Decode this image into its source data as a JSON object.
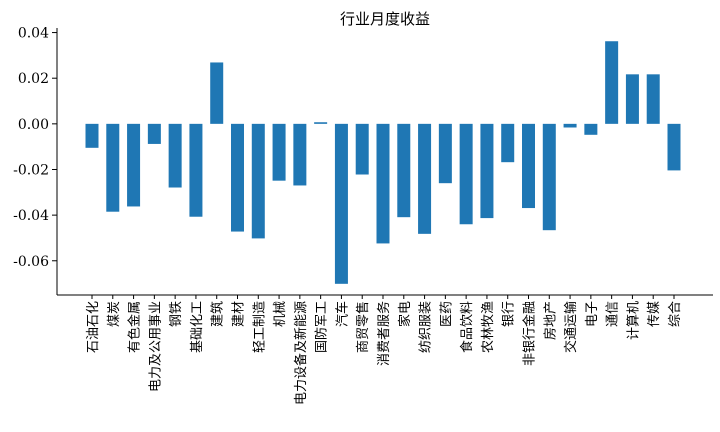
{
  "chart_data": {
    "type": "bar",
    "title": "行业月度收益",
    "xlabel": "",
    "ylabel": "",
    "ylim": [
      -0.075,
      0.042
    ],
    "yticks": [
      0.04,
      0.02,
      0.0,
      -0.02,
      -0.04,
      -0.06
    ],
    "ytick_labels": [
      "0.04",
      "0.02",
      "0.00",
      "-0.02",
      "-0.04",
      "-0.06"
    ],
    "grid": false,
    "bar_color": "#1f77b4",
    "categories": [
      "石油石化",
      "煤炭",
      "有色金属",
      "电力及公用事业",
      "钢铁",
      "基础化工",
      "建筑",
      "建材",
      "轻工制造",
      "机械",
      "电力设备及新能源",
      "国防军工",
      "汽车",
      "商贸零售",
      "消费者服务",
      "家电",
      "纺织服装",
      "医药",
      "食品饮料",
      "农林牧渔",
      "银行",
      "非银行金融",
      "房地产",
      "交通运输",
      "电子",
      "通信",
      "计算机",
      "传媒",
      "综合"
    ],
    "values": [
      -0.0105,
      -0.0385,
      -0.0362,
      -0.0088,
      -0.0279,
      -0.0407,
      0.0269,
      -0.0472,
      -0.0502,
      -0.0249,
      -0.027,
      0.0007,
      -0.0701,
      -0.0222,
      -0.0524,
      -0.0409,
      -0.0482,
      -0.026,
      -0.044,
      -0.0413,
      -0.0168,
      -0.0369,
      -0.0466,
      -0.0016,
      -0.0048,
      0.0362,
      0.0217,
      0.0217,
      -0.0204
    ]
  }
}
